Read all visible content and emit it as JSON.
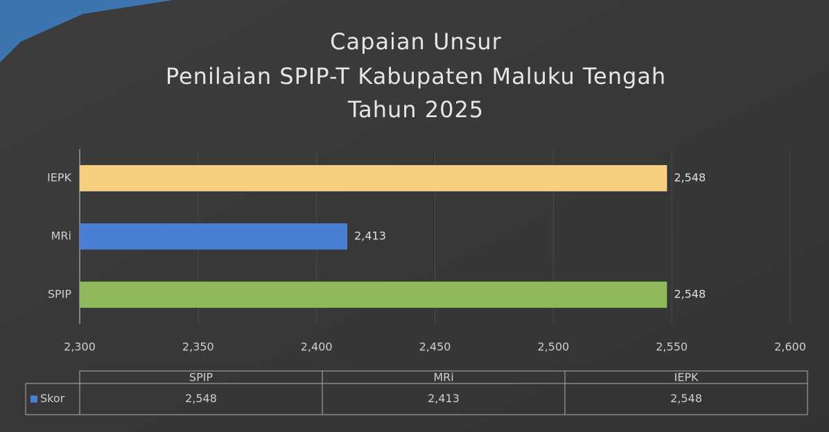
{
  "chart_data": {
    "type": "barh",
    "title": [
      "Capaian Unsur",
      "Penilaian SPIP-T Kabupaten Maluku Tengah",
      "Tahun 2025"
    ],
    "categories": [
      "SPIP",
      "MRi",
      "IEPK"
    ],
    "series": [
      {
        "name": "Skor",
        "color": "#4a7fd4",
        "colors": [
          "#8fb85a",
          "#4a7fd4",
          "#f5cf7f"
        ],
        "values": [
          2.548,
          2.413,
          2.548
        ],
        "value_labels": [
          "2,548",
          "2,413",
          "2,548"
        ]
      }
    ],
    "xlim": [
      2.3,
      2.6
    ],
    "xticks": [
      {
        "value": 2.3,
        "label": "2,300"
      },
      {
        "value": 2.35,
        "label": "2,350"
      },
      {
        "value": 2.4,
        "label": "2,400"
      },
      {
        "value": 2.45,
        "label": "2,450"
      },
      {
        "value": 2.5,
        "label": "2,500"
      },
      {
        "value": 2.55,
        "label": "2,550"
      },
      {
        "value": 2.6,
        "label": "2,600"
      }
    ],
    "grid": true,
    "data_table": true
  }
}
